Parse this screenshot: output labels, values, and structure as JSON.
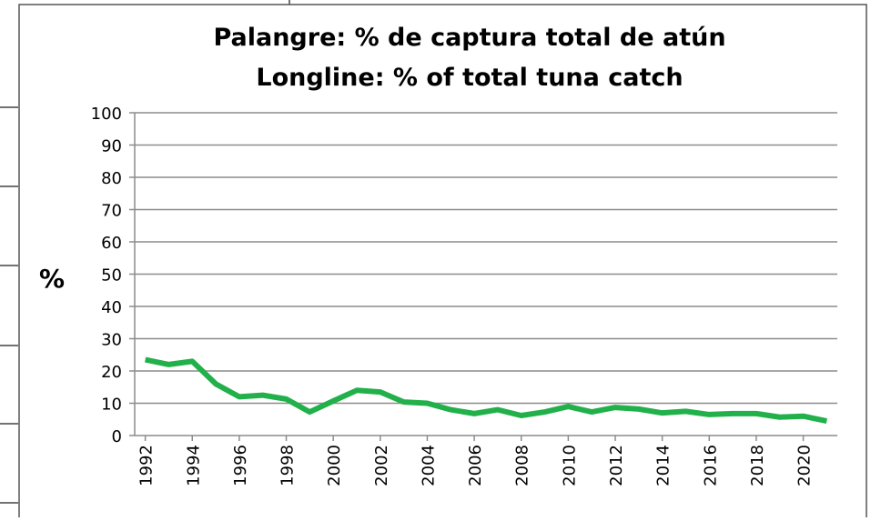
{
  "chart_data": {
    "type": "line",
    "title": [
      "Palangre: % de captura total de atún",
      "Longline: % of total tuna catch"
    ],
    "y_label": "%",
    "x": [
      1992,
      1993,
      1994,
      1995,
      1996,
      1997,
      1998,
      1999,
      2000,
      2001,
      2002,
      2003,
      2004,
      2005,
      2006,
      2007,
      2008,
      2009,
      2010,
      2011,
      2012,
      2013,
      2014,
      2015,
      2016,
      2017,
      2018,
      2019,
      2020,
      2021
    ],
    "series": [
      {
        "name": "Longline",
        "color": "#22b04b",
        "values": [
          23.5,
          22,
          23,
          16,
          12,
          12.5,
          11.3,
          7.3,
          10.7,
          14,
          13.5,
          10.4,
          10,
          8,
          6.8,
          8,
          6.2,
          7.3,
          9,
          7.3,
          8.7,
          8.2,
          7,
          7.5,
          6.5,
          6.8,
          6.8,
          5.7,
          6,
          4.5
        ]
      }
    ],
    "xlim": [
      1991.55,
      2021.45
    ],
    "xticks": [
      1992,
      1994,
      1996,
      1998,
      2000,
      2002,
      2004,
      2006,
      2008,
      2010,
      2012,
      2014,
      2016,
      2018,
      2020
    ],
    "ylim": [
      0,
      100
    ],
    "yticks": [
      0,
      10,
      20,
      30,
      40,
      50,
      60,
      70,
      80,
      90,
      100
    ],
    "grid": true
  }
}
